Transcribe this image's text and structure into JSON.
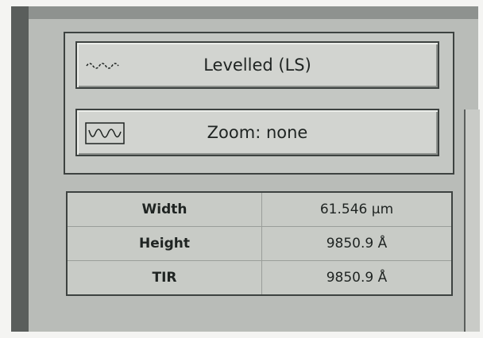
{
  "buttons": [
    {
      "label": "Levelled (LS)"
    },
    {
      "label": "Zoom: none"
    }
  ],
  "table": {
    "rows": [
      [
        "Width",
        "61.546 µm"
      ],
      [
        "Height",
        "9850.9 Å"
      ],
      [
        "TIR",
        "9850.9 Å"
      ]
    ]
  }
}
